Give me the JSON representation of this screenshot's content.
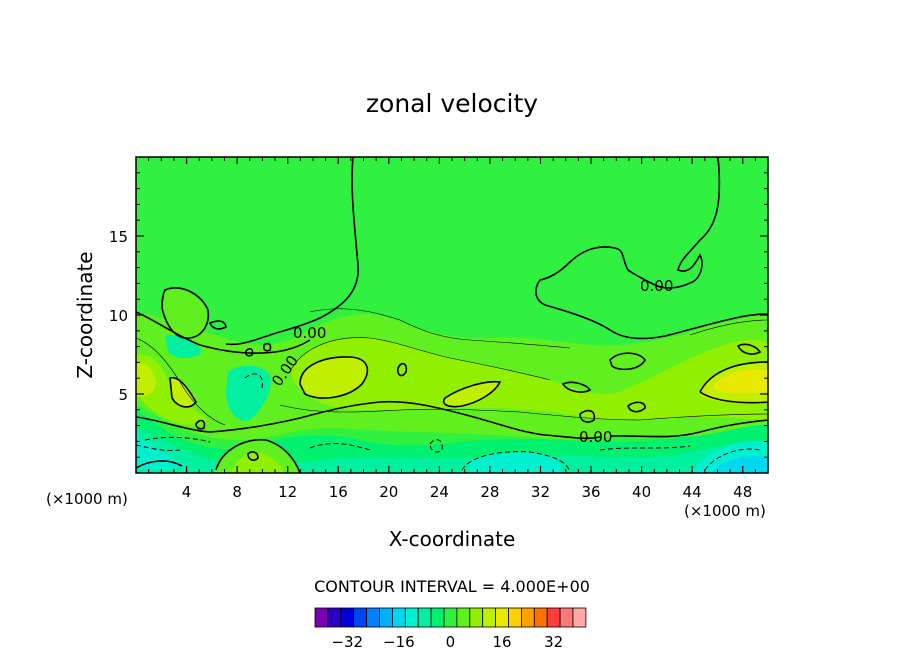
{
  "chart_data": {
    "type": "contour",
    "title": "zonal velocity",
    "xlabel": "X-coordinate",
    "ylabel": "Z-coordinate",
    "x_unit_label": "(×1000 m)",
    "y_unit_label": "(×1000 m)",
    "xlim": [
      0,
      50
    ],
    "ylim": [
      0,
      20
    ],
    "x_ticks": [
      4,
      8,
      12,
      16,
      20,
      24,
      28,
      32,
      36,
      40,
      44,
      48
    ],
    "y_ticks": [
      5,
      10,
      15
    ],
    "contour_interval_text": "CONTOUR INTERVAL = 4.000E+00",
    "contour_labels": [
      {
        "text": "0.00",
        "x": 13.9,
        "y": 8.6
      },
      {
        "text": "0.00",
        "x": 11.9,
        "y": 6.1
      },
      {
        "text": "0.00",
        "x": 40.7,
        "y": 11.7
      },
      {
        "text": "0.00",
        "x": 36.5,
        "y": 2.2
      }
    ],
    "colorbar": {
      "tick_labels": [
        "-32",
        "-16",
        "0",
        "16",
        "32"
      ],
      "tick_values": [
        -32,
        -16,
        0,
        16,
        32
      ],
      "levels": [
        -40,
        -36,
        -32,
        -28,
        -24,
        -20,
        -16,
        -12,
        -8,
        -4,
        0,
        4,
        8,
        12,
        16,
        20,
        24,
        28,
        32,
        36,
        40
      ],
      "colors": [
        "#7a00b4",
        "#2800c8",
        "#0000dc",
        "#0046f0",
        "#0080ff",
        "#00b0ff",
        "#00d8f0",
        "#00f0d0",
        "#00f0a0",
        "#00f070",
        "#30f040",
        "#60f020",
        "#90f000",
        "#c0f000",
        "#e8e800",
        "#ffd000",
        "#ffa000",
        "#ff7000",
        "#ff3c3c",
        "#ff7878",
        "#ffa8a8"
      ]
    },
    "field_colors": {
      "zero_band": "#30f040",
      "weak_positive": "#60f020",
      "positive": "#90f000",
      "strong_positive": "#c0f000",
      "max_positive": "#e8e800",
      "weak_negative": "#00f070",
      "negative": "#00f0a0",
      "strong_negative": "#00f0d0",
      "max_negative": "#00d8f0"
    }
  }
}
